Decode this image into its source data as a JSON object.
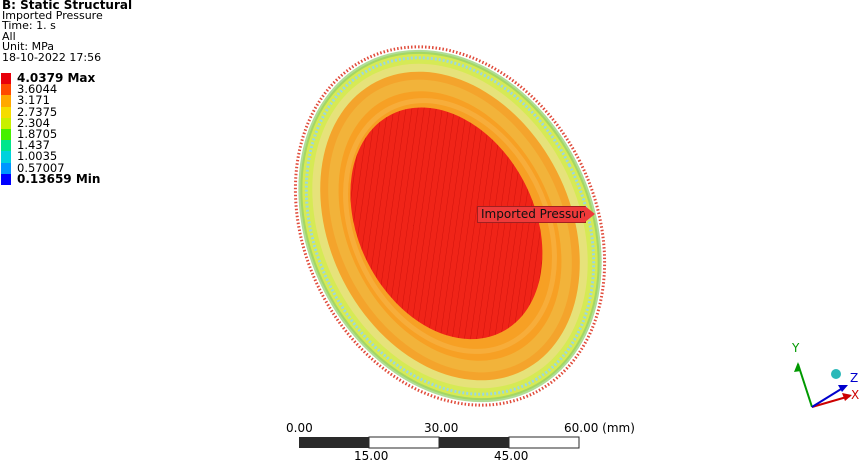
{
  "header": {
    "title": "B: Static Structural",
    "result_name": "Imported Pressure",
    "time": "Time: 1. s",
    "scope": "All",
    "unit": "Unit: MPa",
    "timestamp": "18-10-2022 17:56"
  },
  "legend": {
    "items": [
      {
        "label": "4.0379 Max",
        "color": "#e8000a",
        "bold": true
      },
      {
        "label": "3.6044",
        "color": "#ff4a00",
        "bold": false
      },
      {
        "label": "3.171",
        "color": "#ffa800",
        "bold": false
      },
      {
        "label": "2.7375",
        "color": "#f5dc00",
        "bold": false
      },
      {
        "label": "2.304",
        "color": "#c8f000",
        "bold": false
      },
      {
        "label": "1.8705",
        "color": "#46f000",
        "bold": false
      },
      {
        "label": "1.437",
        "color": "#00e68c",
        "bold": false
      },
      {
        "label": "1.0035",
        "color": "#00d2dc",
        "bold": false
      },
      {
        "label": "0.57007",
        "color": "#0096ff",
        "bold": false
      },
      {
        "label": "0.13659 Min",
        "color": "#0000ff",
        "bold": true
      }
    ]
  },
  "probe": {
    "label": "Imported Pressure"
  },
  "scale_bar": {
    "top_labels": [
      "0.00",
      "30.00",
      "60.00 (mm)"
    ],
    "bottom_labels": [
      "15.00",
      "45.00"
    ]
  },
  "triad": {
    "x_label": "X",
    "y_label": "Y",
    "z_label": "Z",
    "x_color": "#cc0000",
    "y_color": "#00a000",
    "z_color": "#0000cc"
  }
}
